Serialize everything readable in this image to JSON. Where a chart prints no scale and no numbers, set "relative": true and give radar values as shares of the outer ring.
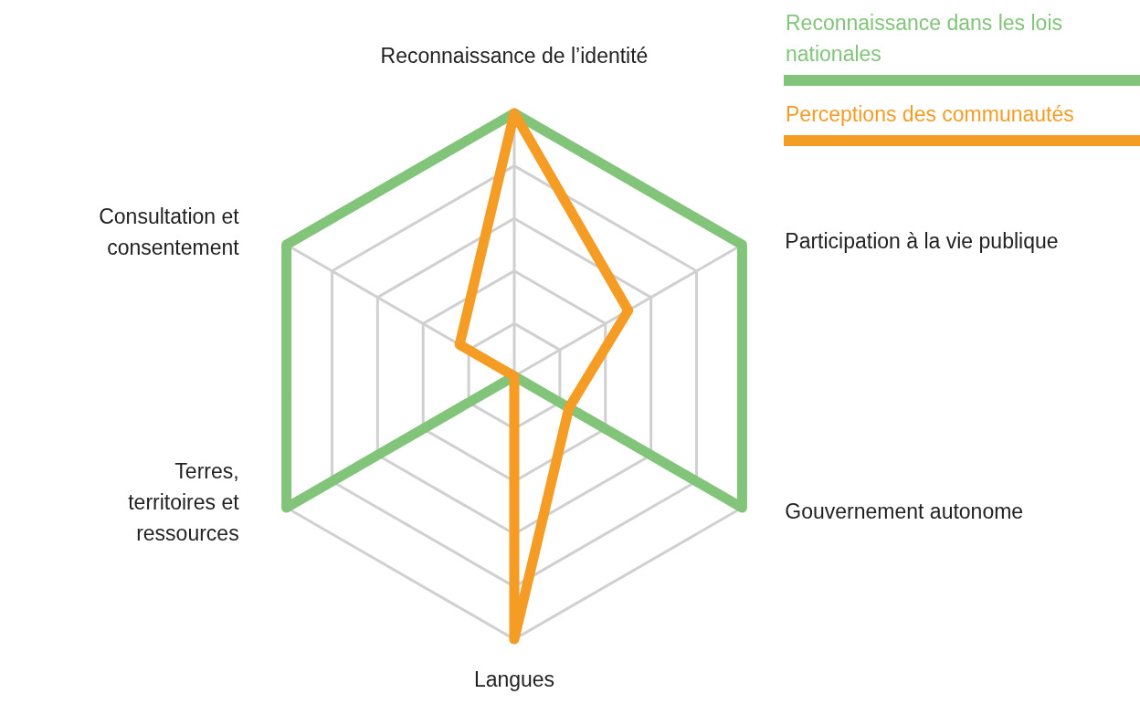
{
  "chart_data": {
    "type": "radar",
    "relative": true,
    "categories": [
      "Reconnaissance de l’identité",
      "Participation à la vie publique",
      "Gouvernement autonome",
      "Langues",
      "Terres, territoires et ressources",
      "Consultation et consentement"
    ],
    "series": [
      {
        "name": "Reconnaissance dans les lois nationales",
        "color": "#82c57a",
        "values": [
          1,
          1,
          1,
          0,
          1,
          1
        ]
      },
      {
        "name": "Perceptions des communautés",
        "color": "#f59c25",
        "values": [
          1,
          0.5,
          0.24,
          1,
          0,
          0.24
        ]
      }
    ],
    "grid": true,
    "legend": "top right",
    "marker": "none",
    "line_style": "solid"
  }
}
